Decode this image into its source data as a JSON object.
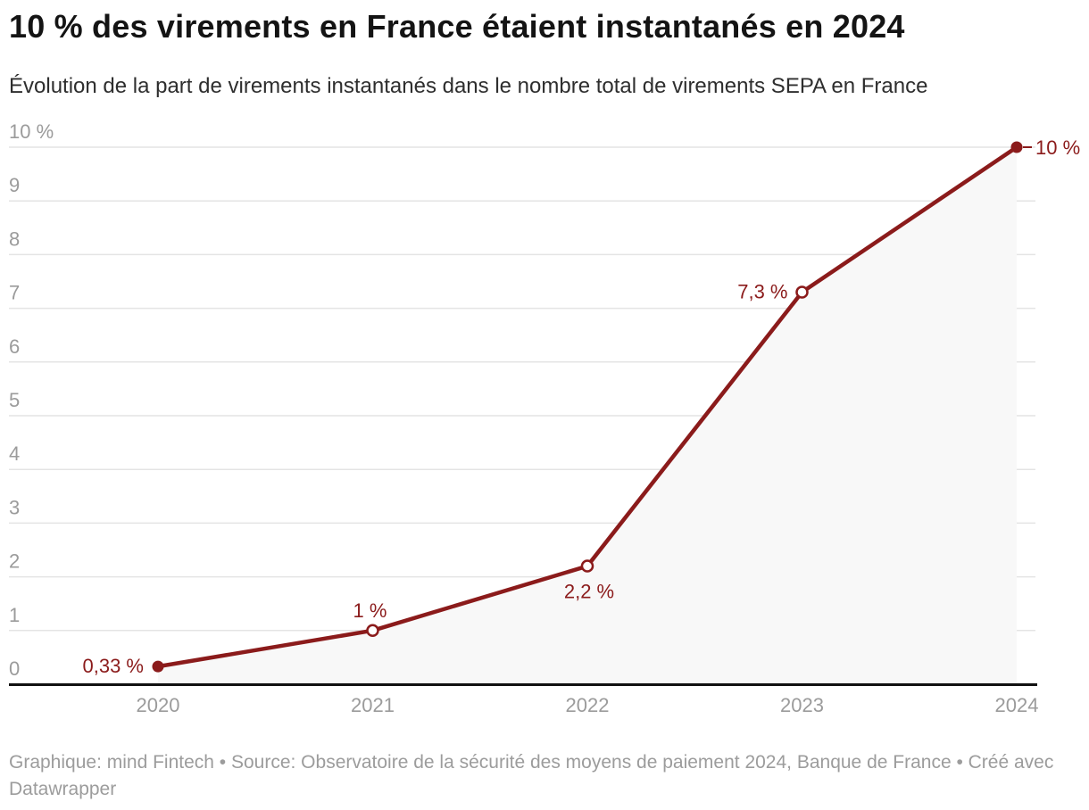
{
  "header": {
    "title": "10 % des virements en France étaient instantanés en 2024",
    "subtitle": "Évolution de la part de virements instantanés dans le nombre total de virements SEPA en France"
  },
  "chart_data": {
    "type": "line",
    "title": "10 % des virements en France étaient instantanés en 2024",
    "subtitle": "Évolution de la part de virements instantanés dans le nombre total de virements SEPA en France",
    "x": [
      "2020",
      "2021",
      "2022",
      "2023",
      "2024"
    ],
    "values": [
      0.33,
      1,
      2.2,
      7.3,
      10
    ],
    "point_labels": [
      "0,33 %",
      "1 %",
      "2,2 %",
      "7,3 %",
      "10 %"
    ],
    "point_label_placement": [
      "left",
      "above",
      "below",
      "left",
      "right"
    ],
    "point_filled": [
      true,
      false,
      false,
      false,
      true
    ],
    "y_ticks": [
      0,
      1,
      2,
      3,
      4,
      5,
      6,
      7,
      8,
      9,
      10
    ],
    "y_tick_labels": [
      "0",
      "1",
      "2",
      "3",
      "4",
      "5",
      "6",
      "7",
      "8",
      "9",
      "10 %"
    ],
    "ylim": [
      0,
      10
    ],
    "grid": true,
    "legend": "none",
    "area_under_line": true,
    "colors": {
      "line": "#8b1b1b",
      "point_label_text": "#8b1b1b",
      "area_fill": "#f8f8f8",
      "gridline": "#e4e4e4",
      "axis_line": "#111111",
      "tick_text": "#9b9b9b"
    }
  },
  "footer": {
    "credit": "Graphique: mind Fintech • Source: Observatoire de la sécurité des moyens de paiement 2024, Banque de France • Créé avec Datawrapper"
  }
}
